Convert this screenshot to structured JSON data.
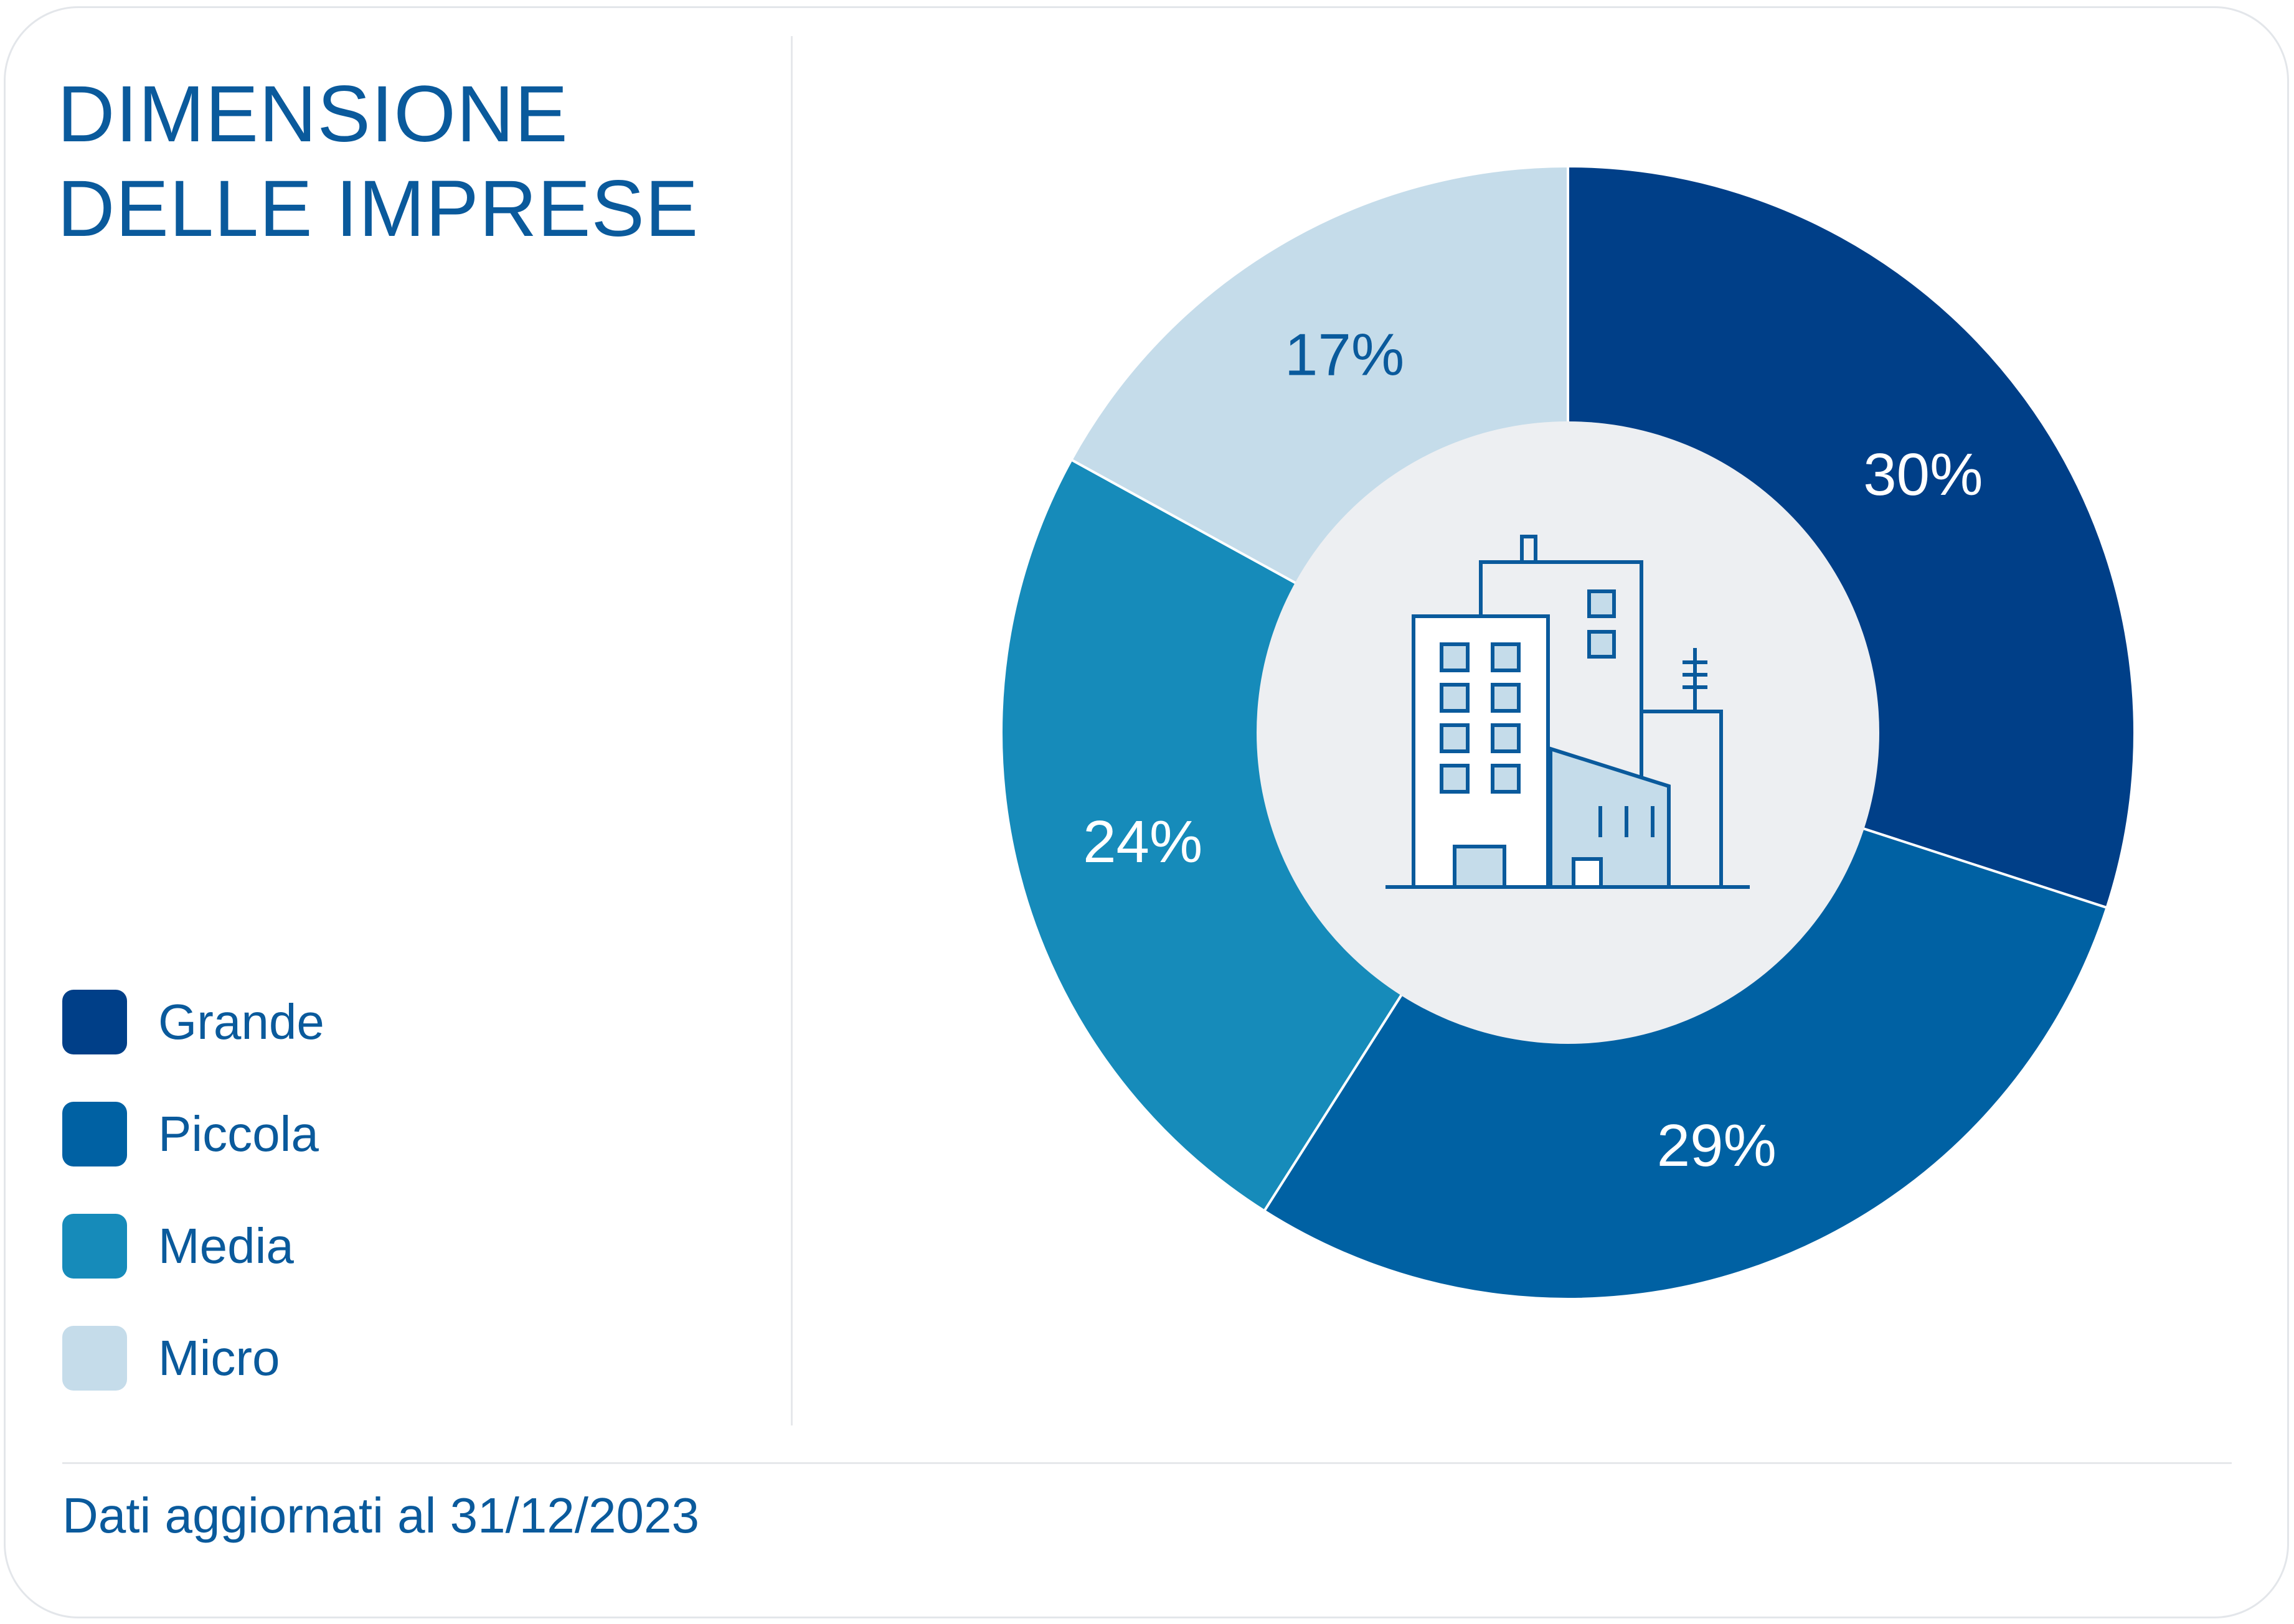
{
  "title": [
    "DIMENSIONE",
    "DELLE IMPRESE"
  ],
  "footer": "Dati aggiornati al 31/12/2023",
  "colors": {
    "text": "#0a5a9c",
    "center_circle": "#edeff2",
    "icon_stroke": "#0a5a9c",
    "icon_fill": "#c5dcea"
  },
  "center_icon": "office-buildings-icon",
  "chart_data": {
    "type": "pie",
    "title": "DIMENSIONE DELLE IMPRESE",
    "donut": true,
    "slices": [
      {
        "name": "Grande",
        "value": 30,
        "label": "30%",
        "color": "#003f88",
        "label_color": "#ffffff"
      },
      {
        "name": "Piccola",
        "value": 29,
        "label": "29%",
        "color": "#0061a3",
        "label_color": "#ffffff"
      },
      {
        "name": "Media",
        "value": 24,
        "label": "24%",
        "color": "#168bba",
        "label_color": "#ffffff"
      },
      {
        "name": "Micro",
        "value": 17,
        "label": "17%",
        "color": "#c5dcea",
        "label_color": "#0a5a9c"
      }
    ],
    "legend_position": "bottom-left"
  }
}
